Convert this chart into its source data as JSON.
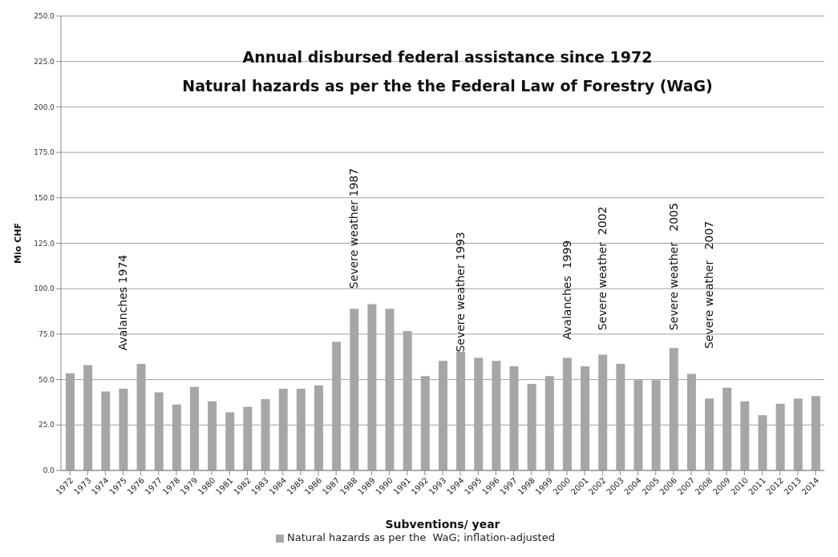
{
  "chart_data": {
    "type": "bar",
    "title": "Annual disbursed federal assistance since 1972",
    "subtitle": "Natural hazards as per the the Federal Law of Forestry (WaG)",
    "xlabel": "Subventions/ year",
    "ylabel": "Mio CHF",
    "categories": [
      "1972",
      "1973",
      "1974",
      "1975",
      "1976",
      "1977",
      "1978",
      "1979",
      "1980",
      "1981",
      "1982",
      "1983",
      "1984",
      "1985",
      "1986",
      "1987",
      "1988",
      "1989",
      "1990",
      "1991",
      "1992",
      "1993",
      "1994",
      "1995",
      "1996",
      "1997",
      "1998",
      "1999",
      "2000",
      "2001",
      "2002",
      "2003",
      "2004",
      "2005",
      "2006",
      "2007",
      "2008",
      "2009",
      "2010",
      "2011",
      "2012",
      "2013",
      "2014"
    ],
    "series": [
      {
        "name": "Natural hazards as per the  WaG; inflation-adjusted",
        "color": "#a6a6a6",
        "values": [
          53.5,
          58,
          43.4,
          45,
          58.6,
          43,
          36.3,
          46,
          38,
          32,
          35,
          39.2,
          45,
          45,
          46.8,
          70.8,
          89,
          91.5,
          89,
          76.7,
          51.9,
          60.3,
          65.3,
          62,
          60.3,
          57.3,
          47.6,
          51.9,
          62,
          57.3,
          63.7,
          58.6,
          49.7,
          49.7,
          67.4,
          53.1,
          39.6,
          45.5,
          38,
          30.4,
          36.7,
          39.6,
          40.9
        ]
      }
    ],
    "ylim": [
      0,
      250
    ],
    "yticks": [
      {
        "value": 0,
        "label": "0.0"
      },
      {
        "value": 25,
        "label": "25.0"
      },
      {
        "value": 50,
        "label": "50.0"
      },
      {
        "value": 75,
        "label": "75.0"
      },
      {
        "value": 100,
        "label": "100.0"
      },
      {
        "value": 125,
        "label": "125.0"
      },
      {
        "value": 150,
        "label": "150.0"
      },
      {
        "value": 175,
        "label": "175.0"
      },
      {
        "value": 200,
        "label": "200.0"
      },
      {
        "value": 225,
        "label": "225.0"
      },
      {
        "value": 250,
        "label": "250.0"
      }
    ],
    "grid": "y",
    "legend": "bottom",
    "annotations": [
      "Avalanches 1974",
      "Severe weather 1987",
      "Severe weather 1993",
      "Avalanches  1999",
      "Severe weather  2002",
      "Severe weather   2005",
      "Severe weather   2007"
    ]
  }
}
